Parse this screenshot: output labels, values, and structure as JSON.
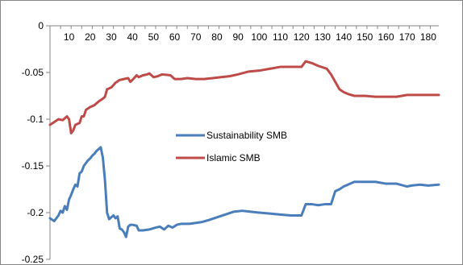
{
  "chart_data": {
    "type": "line",
    "title": "",
    "xlabel": "",
    "ylabel": "",
    "xlim": [
      1,
      185
    ],
    "ylim": [
      -0.25,
      0
    ],
    "x_ticks": [
      10,
      20,
      30,
      40,
      50,
      60,
      70,
      80,
      90,
      100,
      110,
      120,
      130,
      140,
      150,
      160,
      170,
      180
    ],
    "y_ticks": [
      0,
      -0.05,
      -0.1,
      -0.15,
      -0.2,
      -0.25
    ],
    "y_tick_labels": [
      "0",
      "-0.05",
      "-0.1",
      "-0.15",
      "-0.2",
      "-0.25"
    ],
    "x_axis_position": "top",
    "grid": false,
    "legend_position": "center",
    "series": [
      {
        "name": "Sustainability SMB",
        "color": "#4a7ebb",
        "points": [
          [
            1,
            -0.206
          ],
          [
            3,
            -0.209
          ],
          [
            5,
            -0.203
          ],
          [
            6,
            -0.198
          ],
          [
            7,
            -0.2
          ],
          [
            8,
            -0.193
          ],
          [
            9,
            -0.197
          ],
          [
            10,
            -0.186
          ],
          [
            11,
            -0.181
          ],
          [
            12,
            -0.175
          ],
          [
            13,
            -0.17
          ],
          [
            14,
            -0.172
          ],
          [
            15,
            -0.158
          ],
          [
            16,
            -0.156
          ],
          [
            17,
            -0.15
          ],
          [
            18,
            -0.147
          ],
          [
            19,
            -0.144
          ],
          [
            20,
            -0.142
          ],
          [
            21,
            -0.139
          ],
          [
            22,
            -0.137
          ],
          [
            23,
            -0.134
          ],
          [
            24,
            -0.132
          ],
          [
            25,
            -0.13
          ],
          [
            26,
            -0.141
          ],
          [
            27,
            -0.165
          ],
          [
            28,
            -0.2
          ],
          [
            29,
            -0.207
          ],
          [
            30,
            -0.205
          ],
          [
            31,
            -0.203
          ],
          [
            32,
            -0.206
          ],
          [
            33,
            -0.204
          ],
          [
            34,
            -0.217
          ],
          [
            35,
            -0.218
          ],
          [
            36,
            -0.221
          ],
          [
            37,
            -0.226
          ],
          [
            38,
            -0.215
          ],
          [
            39,
            -0.213
          ],
          [
            40,
            -0.213
          ],
          [
            42,
            -0.214
          ],
          [
            43,
            -0.219
          ],
          [
            45,
            -0.219
          ],
          [
            48,
            -0.218
          ],
          [
            51,
            -0.216
          ],
          [
            53,
            -0.215
          ],
          [
            55,
            -0.218
          ],
          [
            57,
            -0.214
          ],
          [
            59,
            -0.216
          ],
          [
            61,
            -0.213
          ],
          [
            63,
            -0.212
          ],
          [
            67,
            -0.212
          ],
          [
            70,
            -0.211
          ],
          [
            73,
            -0.21
          ],
          [
            76,
            -0.208
          ],
          [
            80,
            -0.205
          ],
          [
            84,
            -0.202
          ],
          [
            88,
            -0.199
          ],
          [
            92,
            -0.198
          ],
          [
            96,
            -0.199
          ],
          [
            100,
            -0.2
          ],
          [
            105,
            -0.201
          ],
          [
            110,
            -0.202
          ],
          [
            115,
            -0.203
          ],
          [
            120,
            -0.203
          ],
          [
            122,
            -0.191
          ],
          [
            125,
            -0.191
          ],
          [
            128,
            -0.192
          ],
          [
            131,
            -0.191
          ],
          [
            134,
            -0.191
          ],
          [
            136,
            -0.177
          ],
          [
            138,
            -0.175
          ],
          [
            140,
            -0.172
          ],
          [
            142,
            -0.17
          ],
          [
            145,
            -0.167
          ],
          [
            150,
            -0.167
          ],
          [
            155,
            -0.167
          ],
          [
            160,
            -0.169
          ],
          [
            165,
            -0.169
          ],
          [
            170,
            -0.172
          ],
          [
            172,
            -0.171
          ],
          [
            176,
            -0.17
          ],
          [
            180,
            -0.171
          ],
          [
            185,
            -0.17
          ]
        ]
      },
      {
        "name": "Islamic SMB",
        "color": "#be4b48",
        "points": [
          [
            1,
            -0.106
          ],
          [
            3,
            -0.103
          ],
          [
            5,
            -0.1
          ],
          [
            7,
            -0.101
          ],
          [
            9,
            -0.097
          ],
          [
            10,
            -0.1
          ],
          [
            11,
            -0.115
          ],
          [
            12,
            -0.112
          ],
          [
            13,
            -0.106
          ],
          [
            15,
            -0.104
          ],
          [
            16,
            -0.097
          ],
          [
            17,
            -0.097
          ],
          [
            18,
            -0.09
          ],
          [
            20,
            -0.087
          ],
          [
            22,
            -0.085
          ],
          [
            24,
            -0.081
          ],
          [
            26,
            -0.078
          ],
          [
            27,
            -0.076
          ],
          [
            28,
            -0.068
          ],
          [
            30,
            -0.066
          ],
          [
            32,
            -0.061
          ],
          [
            34,
            -0.058
          ],
          [
            36,
            -0.057
          ],
          [
            38,
            -0.056
          ],
          [
            39,
            -0.06
          ],
          [
            40,
            -0.058
          ],
          [
            42,
            -0.053
          ],
          [
            43,
            -0.055
          ],
          [
            45,
            -0.053
          ],
          [
            47,
            -0.052
          ],
          [
            48,
            -0.051
          ],
          [
            50,
            -0.055
          ],
          [
            52,
            -0.054
          ],
          [
            54,
            -0.052
          ],
          [
            58,
            -0.053
          ],
          [
            60,
            -0.057
          ],
          [
            63,
            -0.057
          ],
          [
            66,
            -0.056
          ],
          [
            70,
            -0.057
          ],
          [
            74,
            -0.057
          ],
          [
            78,
            -0.056
          ],
          [
            82,
            -0.055
          ],
          [
            86,
            -0.054
          ],
          [
            90,
            -0.052
          ],
          [
            95,
            -0.049
          ],
          [
            100,
            -0.048
          ],
          [
            105,
            -0.046
          ],
          [
            110,
            -0.044
          ],
          [
            115,
            -0.044
          ],
          [
            120,
            -0.044
          ],
          [
            122,
            -0.038
          ],
          [
            125,
            -0.04
          ],
          [
            128,
            -0.043
          ],
          [
            132,
            -0.046
          ],
          [
            134,
            -0.052
          ],
          [
            136,
            -0.06
          ],
          [
            138,
            -0.068
          ],
          [
            140,
            -0.071
          ],
          [
            142,
            -0.073
          ],
          [
            145,
            -0.075
          ],
          [
            150,
            -0.075
          ],
          [
            155,
            -0.076
          ],
          [
            160,
            -0.076
          ],
          [
            165,
            -0.076
          ],
          [
            170,
            -0.074
          ],
          [
            175,
            -0.074
          ],
          [
            180,
            -0.074
          ],
          [
            185,
            -0.074
          ]
        ]
      }
    ]
  }
}
